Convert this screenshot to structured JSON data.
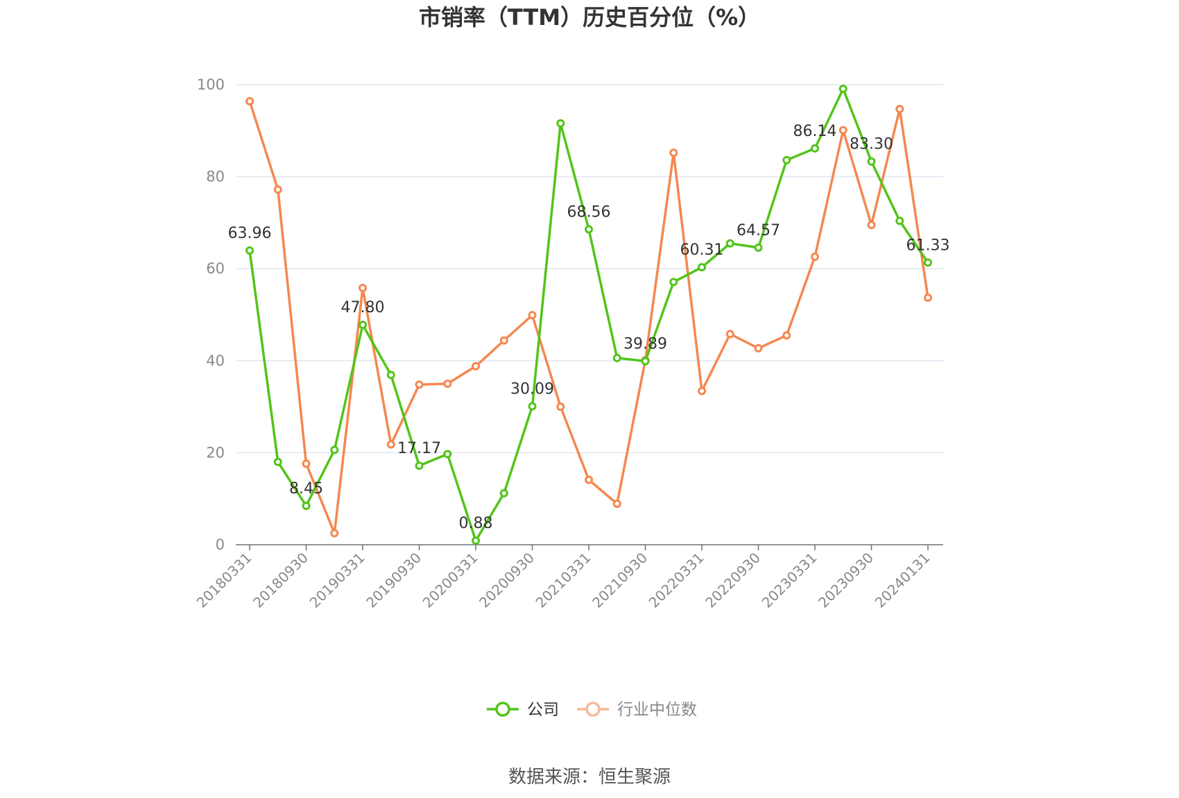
{
  "chart_data": {
    "type": "line",
    "title": "市销率（TTM）历史百分位（%）",
    "source": "数据来源：恒生聚源",
    "ylim": [
      0,
      100
    ],
    "yticks": [
      0,
      20,
      40,
      60,
      80,
      100
    ],
    "grid": true,
    "legend_position": "bottom",
    "x": [
      "20180331",
      "20180630",
      "20180930",
      "20181231",
      "20190331",
      "20190630",
      "20190930",
      "20191231",
      "20200331",
      "20200630",
      "20200930",
      "20201231",
      "20210331",
      "20210630",
      "20210930",
      "20211231",
      "20220331",
      "20220630",
      "20220930",
      "20221231",
      "20230331",
      "20230630",
      "20230930",
      "20231231",
      "20240131"
    ],
    "xtick_labels": [
      "20180331",
      "20180930",
      "20190331",
      "20190930",
      "20200331",
      "20200930",
      "20210331",
      "20210930",
      "20220331",
      "20220930",
      "20230331",
      "20230930",
      "20240131"
    ],
    "series": [
      {
        "name": "公司",
        "color": "#52c41a",
        "values": [
          63.96,
          18.0,
          8.45,
          20.6,
          47.8,
          36.9,
          17.17,
          19.7,
          0.88,
          11.2,
          30.09,
          91.6,
          68.56,
          40.6,
          39.89,
          57.1,
          60.31,
          65.5,
          64.57,
          83.6,
          86.14,
          99.1,
          83.3,
          70.4,
          61.33
        ],
        "labels": [
          "63.96",
          "",
          "8.45",
          "",
          "47.80",
          "",
          "17.17",
          "",
          "0.88",
          "",
          "30.09",
          "",
          "68.56",
          "",
          "39.89",
          "",
          "60.31",
          "",
          "64.57",
          "",
          "86.14",
          "",
          "83.30",
          "",
          "61.33"
        ]
      },
      {
        "name": "行业中位数",
        "color": "#f5874f",
        "values": [
          96.4,
          77.2,
          17.6,
          2.5,
          55.8,
          21.8,
          34.8,
          35.0,
          38.8,
          44.4,
          49.9,
          30.0,
          14.1,
          8.9,
          40.1,
          85.2,
          33.4,
          45.8,
          42.7,
          45.5,
          62.6,
          90.1,
          69.5,
          94.7,
          53.7
        ]
      }
    ]
  }
}
